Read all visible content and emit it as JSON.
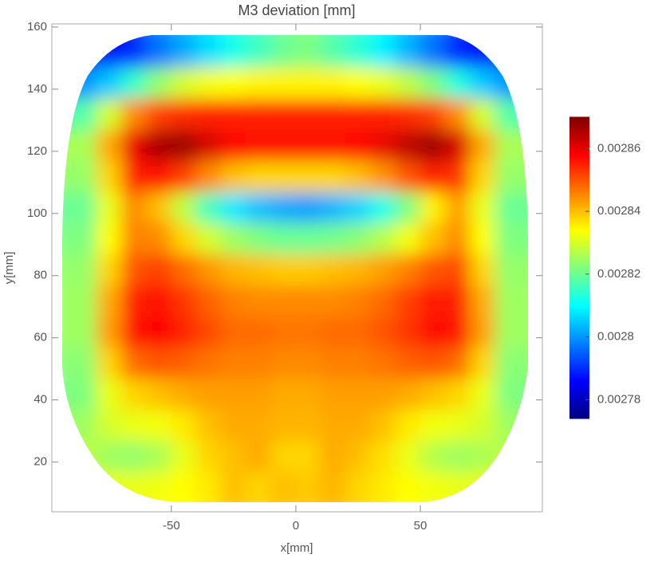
{
  "chart_data": {
    "type": "heatmap",
    "title": "M3 deviation [mm]",
    "xlabel": "x[mm]",
    "ylabel": "y[mm]",
    "xlim": [
      -98,
      99
    ],
    "ylim": [
      4,
      161
    ],
    "xticks": [
      -50,
      0,
      50
    ],
    "yticks": [
      20,
      40,
      60,
      80,
      100,
      120,
      140,
      160
    ],
    "clim": [
      0.002774,
      0.00287
    ],
    "cticks": [
      0.00278,
      0.0028,
      0.00282,
      0.00284,
      0.00286
    ],
    "x": [
      -85,
      -75,
      -65,
      -55,
      -45,
      -35,
      -25,
      -15,
      -5,
      5,
      15,
      25,
      35,
      45,
      55,
      65,
      75,
      85
    ],
    "y": [
      12,
      22,
      32,
      42,
      52,
      62,
      72,
      82,
      92,
      102,
      112,
      122,
      132,
      142,
      152
    ],
    "z": [
      [
        0.002832,
        0.002832,
        0.002832,
        0.002833,
        0.002834,
        0.002836,
        0.00284,
        0.002838,
        0.00284,
        0.002839,
        0.002841,
        0.002838,
        0.002836,
        0.002834,
        0.002833,
        0.002832,
        0.002832,
        0.002832
      ],
      [
        0.002828,
        0.002825,
        0.002824,
        0.002826,
        0.002832,
        0.002838,
        0.00284,
        0.002842,
        0.002838,
        0.002838,
        0.002842,
        0.00284,
        0.002837,
        0.002832,
        0.002827,
        0.002825,
        0.002826,
        0.002828
      ],
      [
        0.002825,
        0.00283,
        0.002832,
        0.002833,
        0.002836,
        0.00284,
        0.002842,
        0.002842,
        0.002841,
        0.002841,
        0.002842,
        0.002842,
        0.00284,
        0.002836,
        0.002833,
        0.002832,
        0.00283,
        0.002825
      ],
      [
        0.002822,
        0.002832,
        0.002838,
        0.00284,
        0.002842,
        0.002843,
        0.002843,
        0.002843,
        0.002842,
        0.002842,
        0.002843,
        0.002843,
        0.002843,
        0.002842,
        0.00284,
        0.002838,
        0.002832,
        0.002822
      ],
      [
        0.002823,
        0.002838,
        0.002848,
        0.00285,
        0.002849,
        0.002847,
        0.002846,
        0.002846,
        0.002845,
        0.002845,
        0.002846,
        0.002846,
        0.002847,
        0.002849,
        0.00285,
        0.002848,
        0.002838,
        0.002823
      ],
      [
        0.002825,
        0.002843,
        0.002856,
        0.002858,
        0.002855,
        0.002851,
        0.002848,
        0.002848,
        0.002847,
        0.002847,
        0.002848,
        0.002848,
        0.00285,
        0.002853,
        0.002857,
        0.002856,
        0.002843,
        0.002825
      ],
      [
        0.002825,
        0.002842,
        0.002855,
        0.002857,
        0.002853,
        0.002849,
        0.002846,
        0.002845,
        0.002845,
        0.002845,
        0.002845,
        0.002846,
        0.002848,
        0.002852,
        0.002856,
        0.002855,
        0.002842,
        0.002825
      ],
      [
        0.002824,
        0.002838,
        0.00285,
        0.002852,
        0.002848,
        0.002844,
        0.002841,
        0.00284,
        0.002839,
        0.002839,
        0.00284,
        0.002841,
        0.002843,
        0.002846,
        0.00285,
        0.002851,
        0.002838,
        0.002824
      ],
      [
        0.002822,
        0.002834,
        0.002846,
        0.002845,
        0.002838,
        0.00283,
        0.002825,
        0.002822,
        0.00282,
        0.00282,
        0.002821,
        0.002823,
        0.002827,
        0.002833,
        0.00284,
        0.002845,
        0.002834,
        0.002822
      ],
      [
        0.00282,
        0.002832,
        0.002845,
        0.00284,
        0.002828,
        0.002816,
        0.002808,
        0.002804,
        0.002802,
        0.002801,
        0.002803,
        0.002806,
        0.002812,
        0.002822,
        0.002835,
        0.002843,
        0.002832,
        0.00282
      ],
      [
        0.002824,
        0.002838,
        0.002855,
        0.002857,
        0.002852,
        0.002845,
        0.00284,
        0.002838,
        0.002838,
        0.002838,
        0.002838,
        0.00284,
        0.002844,
        0.00285,
        0.002855,
        0.002853,
        0.002838,
        0.002824
      ],
      [
        0.002826,
        0.002842,
        0.00286,
        0.002866,
        0.002867,
        0.002862,
        0.002858,
        0.002857,
        0.002857,
        0.002857,
        0.002857,
        0.002858,
        0.00286,
        0.002864,
        0.002867,
        0.002862,
        0.002842,
        0.002826
      ],
      [
        0.002818,
        0.00283,
        0.002845,
        0.002852,
        0.002854,
        0.002855,
        0.002855,
        0.002855,
        0.002855,
        0.002855,
        0.002855,
        0.002855,
        0.002855,
        0.002854,
        0.002852,
        0.002845,
        0.00283,
        0.002818
      ],
      [
        0.0028,
        0.002805,
        0.002815,
        0.002824,
        0.00283,
        0.002833,
        0.002834,
        0.002835,
        0.002835,
        0.002835,
        0.002835,
        0.002834,
        0.002832,
        0.002828,
        0.002822,
        0.002813,
        0.002805,
        0.0028
      ],
      [
        0.002786,
        0.002787,
        0.00279,
        0.002797,
        0.002802,
        0.002807,
        0.002812,
        0.002816,
        0.00282,
        0.002822,
        0.002818,
        0.002814,
        0.002809,
        0.002803,
        0.002797,
        0.00279,
        0.002787,
        0.002786
      ]
    ]
  }
}
